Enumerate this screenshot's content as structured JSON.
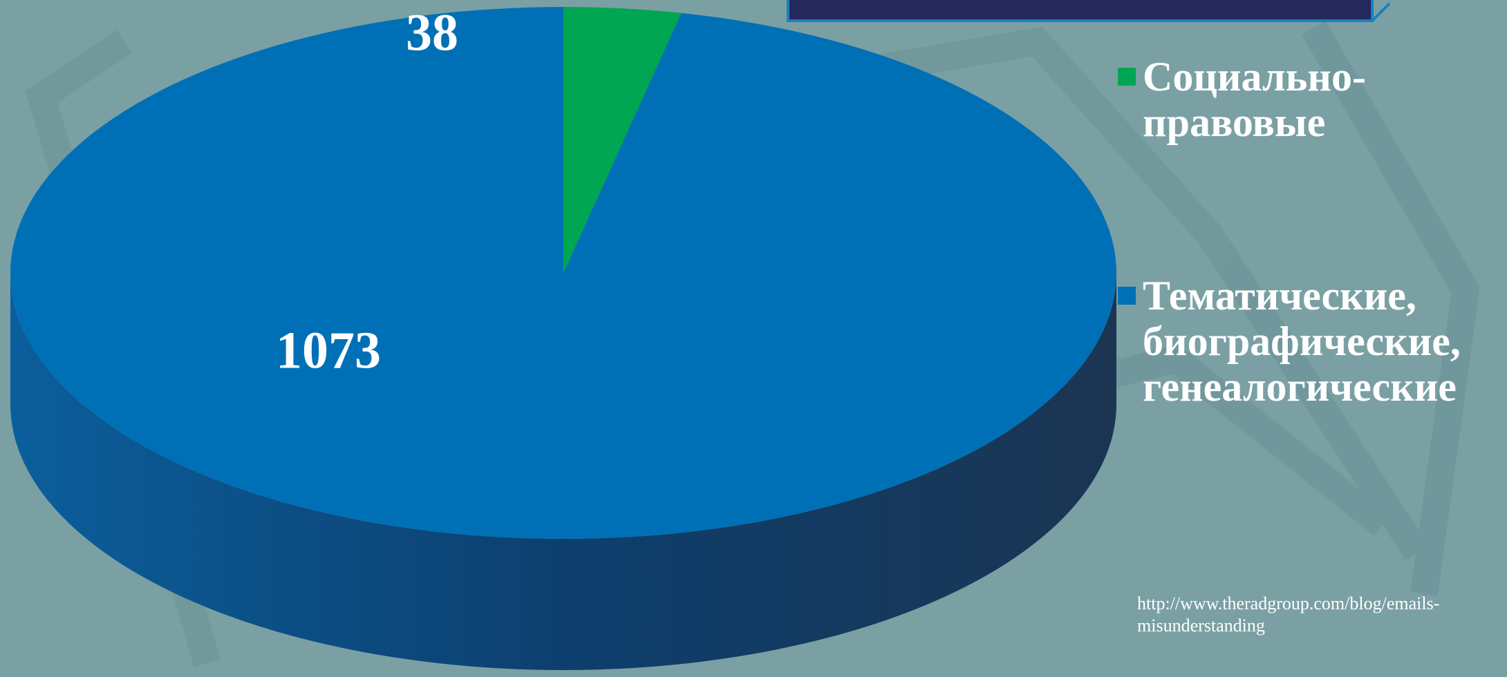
{
  "chart_data": {
    "type": "pie3d",
    "categories": [
      "Социально-правовые",
      "Тематические, биографические, генеалогические"
    ],
    "values": [
      38,
      1073
    ],
    "colors": [
      "#00a651",
      "#0070b6"
    ],
    "source": "http://www.theradgroup.com/blog/emails-misunderstanding"
  }
}
